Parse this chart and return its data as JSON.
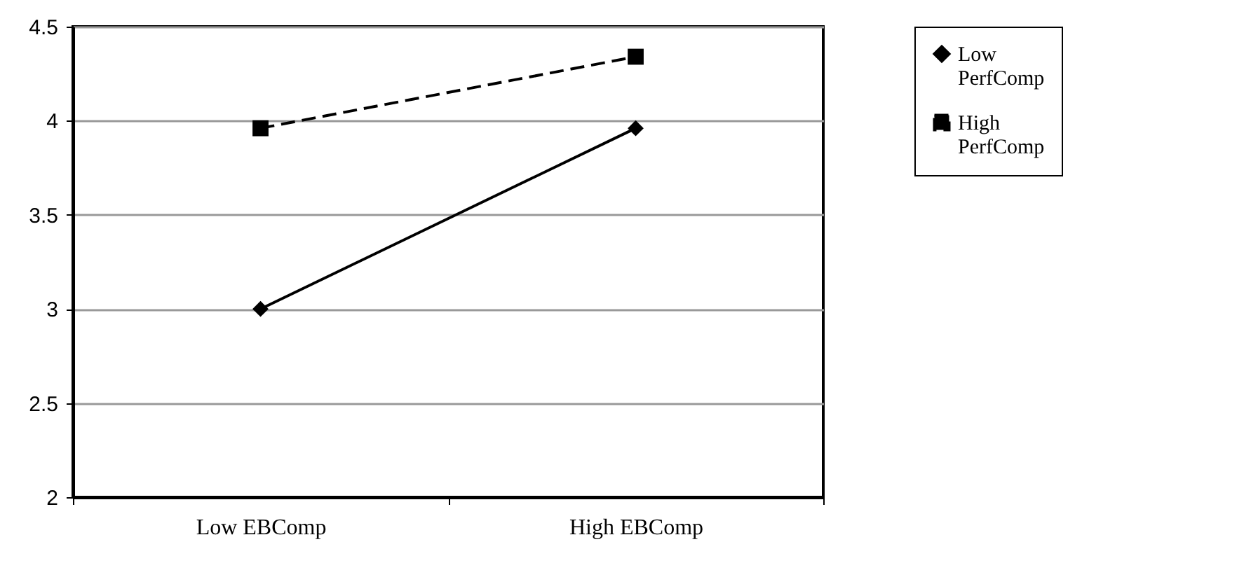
{
  "chart_data": {
    "type": "line",
    "categories": [
      "Low EBComp",
      "High EBComp"
    ],
    "series": [
      {
        "name": "Low PerfComp",
        "color": "#000000",
        "values": [
          3.0,
          3.96
        ],
        "marker": "diamond",
        "line_style": "solid"
      },
      {
        "name": "High PerfComp",
        "color": "#000000",
        "values": [
          3.96,
          4.34
        ],
        "marker": "square",
        "line_style": "dashed"
      }
    ],
    "ylim": [
      2,
      4.5
    ],
    "yticks": [
      2,
      2.5,
      3,
      3.5,
      4,
      4.5
    ],
    "grid": "y",
    "legend": "right"
  }
}
